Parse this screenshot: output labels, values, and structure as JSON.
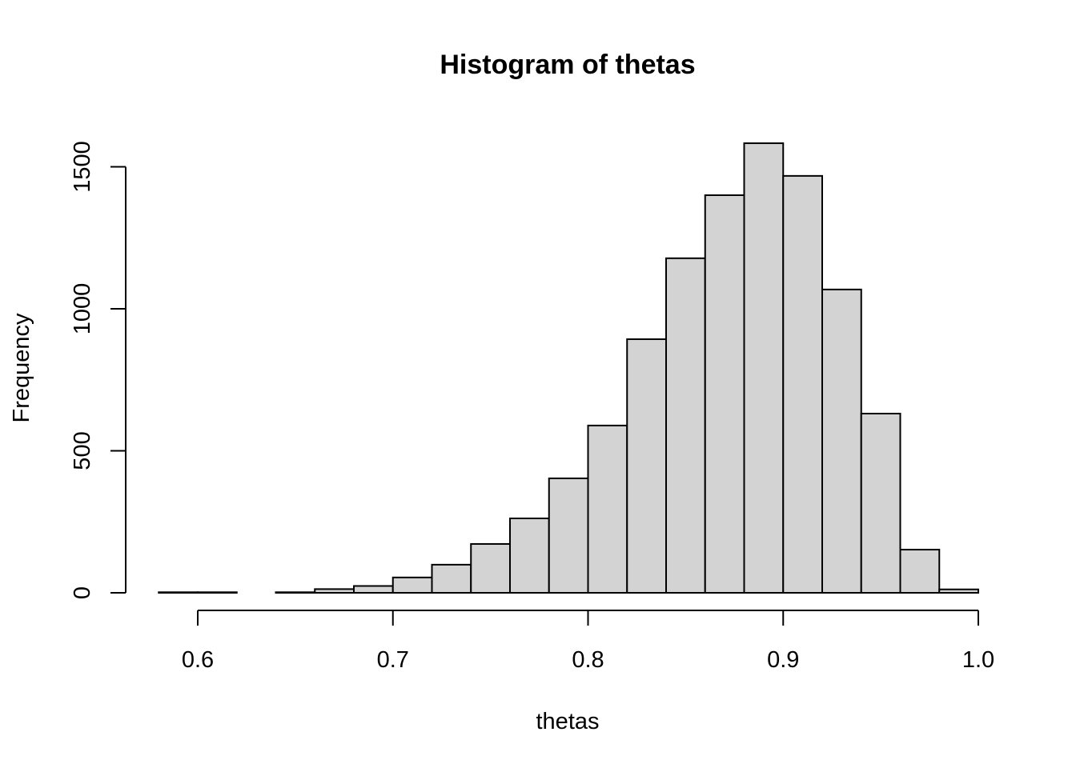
{
  "chart_data": {
    "type": "bar",
    "title": "Histogram of thetas",
    "xlabel": "thetas",
    "ylabel": "Frequency",
    "bin_edges": [
      0.58,
      0.6,
      0.62,
      0.64,
      0.66,
      0.68,
      0.7,
      0.72,
      0.74,
      0.76,
      0.78,
      0.8,
      0.82,
      0.84,
      0.86,
      0.88,
      0.9,
      0.92,
      0.94,
      0.96,
      0.98,
      1.0
    ],
    "values": [
      2,
      2,
      0,
      2,
      13,
      24,
      54,
      99,
      172,
      262,
      403,
      589,
      893,
      1178,
      1400,
      1583,
      1468,
      1068,
      631,
      152,
      12
    ],
    "xticks": [
      0.6,
      0.7,
      0.8,
      0.9,
      1.0
    ],
    "xtick_labels": [
      "0.6",
      "0.7",
      "0.8",
      "0.9",
      "1.0"
    ],
    "yticks": [
      0,
      500,
      1000,
      1500
    ],
    "ytick_labels": [
      "0",
      "500",
      "1000",
      "1500"
    ],
    "xlim": [
      0.58,
      1.0
    ],
    "ylim": [
      0,
      1583
    ],
    "grid": false,
    "bar_color": "#d3d3d3"
  }
}
